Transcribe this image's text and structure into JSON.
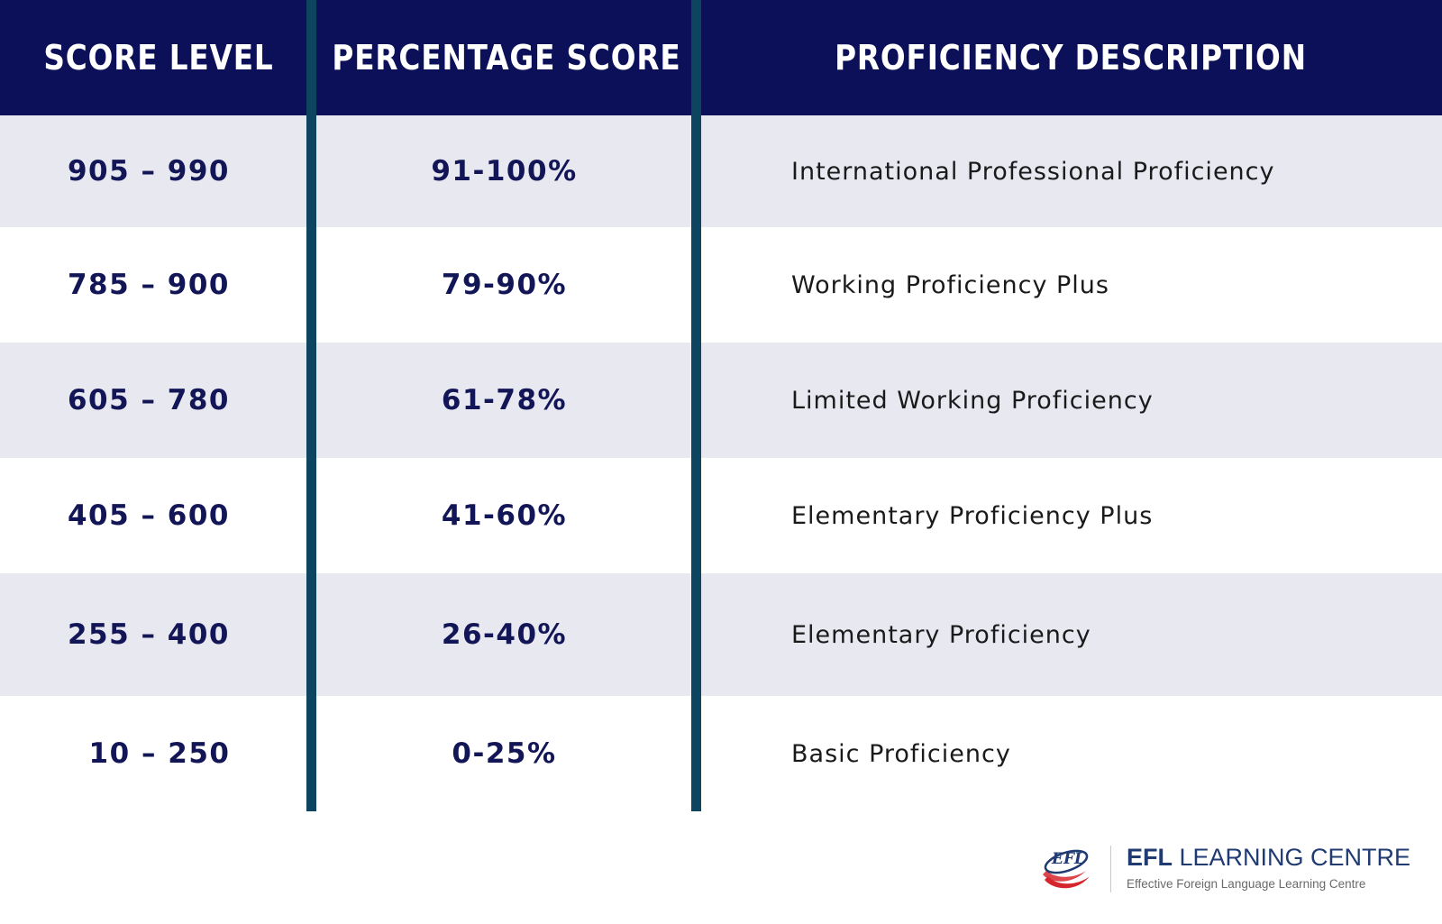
{
  "table": {
    "headers": {
      "score_level": "SCORE LEVEL",
      "percentage_score": "PERCENTAGE SCORE",
      "proficiency_description": "PROFICIENCY DESCRIPTION"
    },
    "rows": [
      {
        "score_level": "905 – 990",
        "percentage_score": "91-100%",
        "proficiency_description": "International Professional Proficiency"
      },
      {
        "score_level": "785 – 900",
        "percentage_score": "79-90%",
        "proficiency_description": "Working Proficiency Plus"
      },
      {
        "score_level": "605 – 780",
        "percentage_score": "61-78%",
        "proficiency_description": "Limited Working Proficiency"
      },
      {
        "score_level": "405 – 600",
        "percentage_score": "41-60%",
        "proficiency_description": "Elementary Proficiency Plus"
      },
      {
        "score_level": "255 – 400",
        "percentage_score": "26-40%",
        "proficiency_description": "Elementary Proficiency"
      },
      {
        "score_level": "10 – 250",
        "percentage_score": "0-25%",
        "proficiency_description": "Basic Proficiency"
      }
    ]
  },
  "logo": {
    "mark_text": "EFL",
    "title_bold": "EFL",
    "title_rest": " LEARNING CENTRE",
    "subtitle": "Effective Foreign Language Learning Centre"
  },
  "colors": {
    "header_background": "#0c1058",
    "divider": "#0d4560",
    "shaded_row": "#e7e8f0",
    "score_text": "#131656"
  }
}
